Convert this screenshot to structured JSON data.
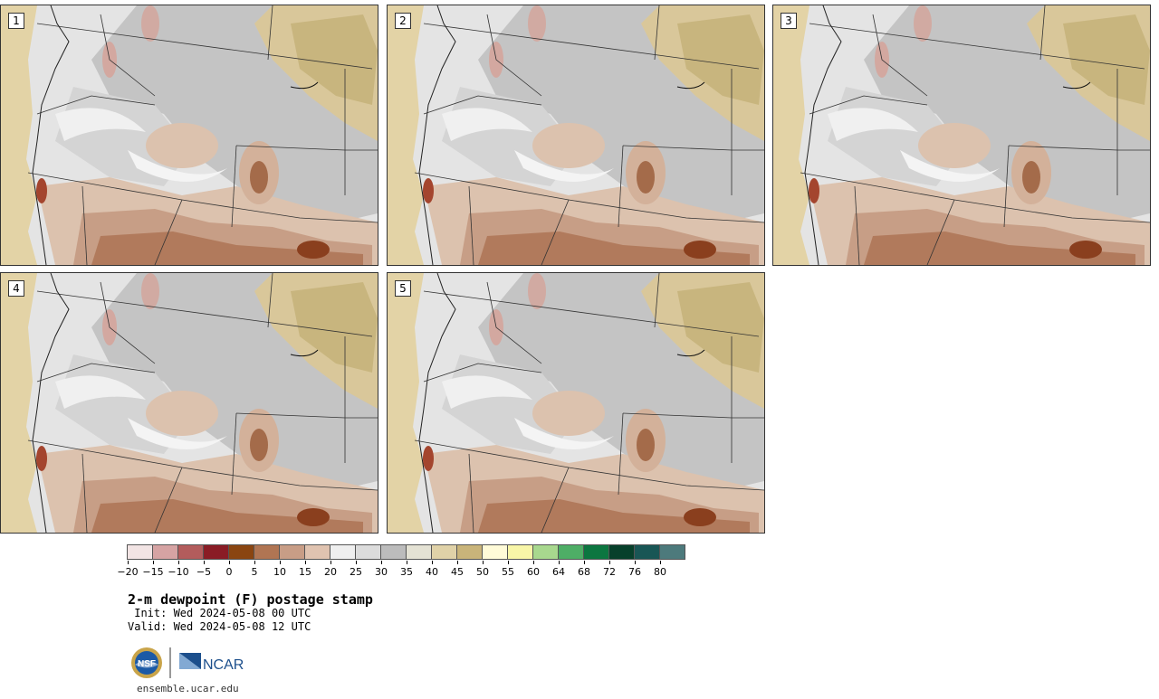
{
  "panels": [
    {
      "label": "1"
    },
    {
      "label": "2"
    },
    {
      "label": "3"
    },
    {
      "label": "4"
    },
    {
      "label": "5"
    }
  ],
  "colorbar": {
    "colors": [
      "#f2e4e4",
      "#d6a3a3",
      "#b35c5c",
      "#8a1c25",
      "#8a4511",
      "#b07553",
      "#c89d86",
      "#e0c3b0",
      "#efefef",
      "#dcdcdc",
      "#bcbcbc",
      "#e4e2d4",
      "#e0d2a8",
      "#c9b47a",
      "#fffbd8",
      "#f8f6a8",
      "#a8d88e",
      "#4eae66",
      "#0c7640",
      "#07402b",
      "#195655",
      "#4d7a7c"
    ],
    "ticks": [
      "−20",
      "−15",
      "−10",
      "−5",
      "0",
      "5",
      "10",
      "15",
      "20",
      "25",
      "30",
      "35",
      "40",
      "45",
      "50",
      "55",
      "60",
      "64",
      "68",
      "72",
      "76",
      "80"
    ]
  },
  "title": "2-m dewpoint (F) postage stamp",
  "init": " Init: Wed 2024-05-08 00 UTC",
  "valid": "Valid: Wed 2024-05-08 12 UTC",
  "logos": {
    "left": "NSF",
    "right": "NCAR"
  },
  "url": "ensemble.ucar.edu"
}
